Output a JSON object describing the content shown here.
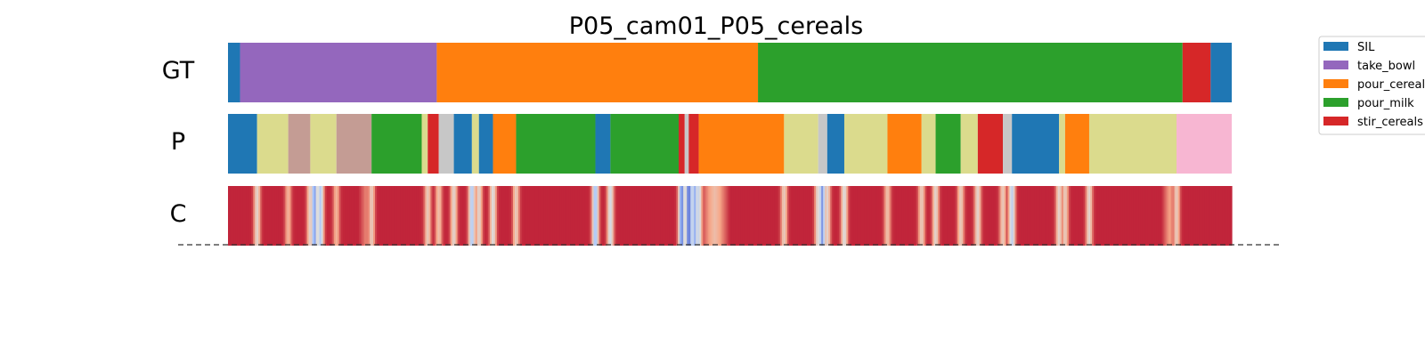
{
  "chart_data": {
    "type": "segmentation_strip",
    "title": "P05_cam01_P05_cereals",
    "x_range": [
      0,
      1
    ],
    "rows": [
      {
        "label": "GT",
        "segments": [
          {
            "start": 0.0,
            "end": 0.012,
            "class": "SIL"
          },
          {
            "start": 0.012,
            "end": 0.208,
            "class": "take_bowl"
          },
          {
            "start": 0.208,
            "end": 0.528,
            "class": "pour_cereals"
          },
          {
            "start": 0.528,
            "end": 0.951,
            "class": "pour_milk"
          },
          {
            "start": 0.951,
            "end": 0.979,
            "class": "stir_cereals"
          },
          {
            "start": 0.979,
            "end": 1.0,
            "class": "SIL"
          }
        ]
      },
      {
        "label": "P",
        "segments": [
          {
            "start": 0.0,
            "end": 0.029,
            "class": "SIL"
          },
          {
            "start": 0.029,
            "end": 0.06,
            "class": "olive"
          },
          {
            "start": 0.06,
            "end": 0.082,
            "class": "brown"
          },
          {
            "start": 0.082,
            "end": 0.108,
            "class": "olive"
          },
          {
            "start": 0.108,
            "end": 0.143,
            "class": "brown"
          },
          {
            "start": 0.143,
            "end": 0.193,
            "class": "pour_milk"
          },
          {
            "start": 0.193,
            "end": 0.199,
            "class": "olive"
          },
          {
            "start": 0.199,
            "end": 0.21,
            "class": "stir_cereals"
          },
          {
            "start": 0.21,
            "end": 0.225,
            "class": "gray"
          },
          {
            "start": 0.225,
            "end": 0.243,
            "class": "SIL"
          },
          {
            "start": 0.243,
            "end": 0.25,
            "class": "olive"
          },
          {
            "start": 0.25,
            "end": 0.264,
            "class": "SIL"
          },
          {
            "start": 0.264,
            "end": 0.287,
            "class": "pour_cereals"
          },
          {
            "start": 0.287,
            "end": 0.366,
            "class": "pour_milk"
          },
          {
            "start": 0.366,
            "end": 0.381,
            "class": "SIL"
          },
          {
            "start": 0.381,
            "end": 0.449,
            "class": "pour_milk"
          },
          {
            "start": 0.449,
            "end": 0.455,
            "class": "stir_cereals"
          },
          {
            "start": 0.455,
            "end": 0.459,
            "class": "gray"
          },
          {
            "start": 0.459,
            "end": 0.469,
            "class": "stir_cereals"
          },
          {
            "start": 0.469,
            "end": 0.554,
            "class": "pour_cereals"
          },
          {
            "start": 0.554,
            "end": 0.588,
            "class": "olive"
          },
          {
            "start": 0.588,
            "end": 0.597,
            "class": "gray"
          },
          {
            "start": 0.597,
            "end": 0.614,
            "class": "SIL"
          },
          {
            "start": 0.614,
            "end": 0.657,
            "class": "olive"
          },
          {
            "start": 0.657,
            "end": 0.691,
            "class": "pour_cereals"
          },
          {
            "start": 0.691,
            "end": 0.705,
            "class": "olive"
          },
          {
            "start": 0.705,
            "end": 0.73,
            "class": "pour_milk"
          },
          {
            "start": 0.73,
            "end": 0.747,
            "class": "olive"
          },
          {
            "start": 0.747,
            "end": 0.772,
            "class": "stir_cereals"
          },
          {
            "start": 0.772,
            "end": 0.781,
            "class": "gray"
          },
          {
            "start": 0.781,
            "end": 0.828,
            "class": "SIL"
          },
          {
            "start": 0.828,
            "end": 0.834,
            "class": "olive"
          },
          {
            "start": 0.834,
            "end": 0.858,
            "class": "pour_cereals"
          },
          {
            "start": 0.858,
            "end": 0.945,
            "class": "olive"
          },
          {
            "start": 0.945,
            "end": 1.0,
            "class": "pink"
          }
        ]
      },
      {
        "label": "C",
        "base_value": 0.95,
        "dips": [
          {
            "pos": 0.029,
            "value": 0.55
          },
          {
            "pos": 0.06,
            "value": 0.7
          },
          {
            "pos": 0.082,
            "value": 0.55
          },
          {
            "pos": 0.086,
            "value": 0.15
          },
          {
            "pos": 0.092,
            "value": 0.3
          },
          {
            "pos": 0.108,
            "value": 0.7
          },
          {
            "pos": 0.143,
            "value": 0.6
          },
          {
            "pos": 0.199,
            "value": 0.6
          },
          {
            "pos": 0.21,
            "value": 0.65
          },
          {
            "pos": 0.225,
            "value": 0.55
          },
          {
            "pos": 0.243,
            "value": 0.3
          },
          {
            "pos": 0.25,
            "value": 0.55
          },
          {
            "pos": 0.264,
            "value": 0.5
          },
          {
            "pos": 0.287,
            "value": 0.6
          },
          {
            "pos": 0.366,
            "value": 0.25
          },
          {
            "pos": 0.381,
            "value": 0.45
          },
          {
            "pos": 0.452,
            "value": 0.1
          },
          {
            "pos": 0.459,
            "value": 0.05
          },
          {
            "pos": 0.465,
            "value": 0.2
          },
          {
            "pos": 0.469,
            "value": 0.4
          },
          {
            "pos": 0.554,
            "value": 0.6
          },
          {
            "pos": 0.588,
            "value": 0.5
          },
          {
            "pos": 0.592,
            "value": 0.15
          },
          {
            "pos": 0.597,
            "value": 0.55
          },
          {
            "pos": 0.614,
            "value": 0.5
          },
          {
            "pos": 0.657,
            "value": 0.65
          },
          {
            "pos": 0.691,
            "value": 0.6
          },
          {
            "pos": 0.705,
            "value": 0.55
          },
          {
            "pos": 0.73,
            "value": 0.6
          },
          {
            "pos": 0.747,
            "value": 0.55
          },
          {
            "pos": 0.772,
            "value": 0.6
          },
          {
            "pos": 0.781,
            "value": 0.35
          },
          {
            "pos": 0.828,
            "value": 0.55
          },
          {
            "pos": 0.834,
            "value": 0.6
          },
          {
            "pos": 0.858,
            "value": 0.55
          },
          {
            "pos": 0.945,
            "value": 0.6
          }
        ],
        "wide_regions": [
          {
            "start": 0.13,
            "end": 0.145,
            "value": 0.8
          },
          {
            "start": 0.45,
            "end": 0.47,
            "value": 0.25
          },
          {
            "start": 0.47,
            "end": 0.5,
            "value": 0.65
          },
          {
            "start": 0.93,
            "end": 0.946,
            "value": 0.75
          }
        ]
      }
    ],
    "legend": {
      "position": "top-right",
      "entries": [
        "SIL",
        "take_bowl",
        "pour_cereals",
        "pour_milk",
        "stir_cereals"
      ]
    },
    "colors": {
      "SIL": "#1f77b4",
      "take_bowl": "#9467bd",
      "pour_cereals": "#ff7f0e",
      "pour_milk": "#2ca02c",
      "stir_cereals": "#d62728",
      "olive": "#dbdb8d",
      "brown": "#c49c94",
      "gray": "#c7c7c7",
      "pink": "#f7b6d2"
    },
    "confidence_colormap": [
      "#3b4cc0",
      "#aac7fd",
      "#dddddd",
      "#f7a889",
      "#b40426"
    ],
    "baseline": "dashed"
  }
}
